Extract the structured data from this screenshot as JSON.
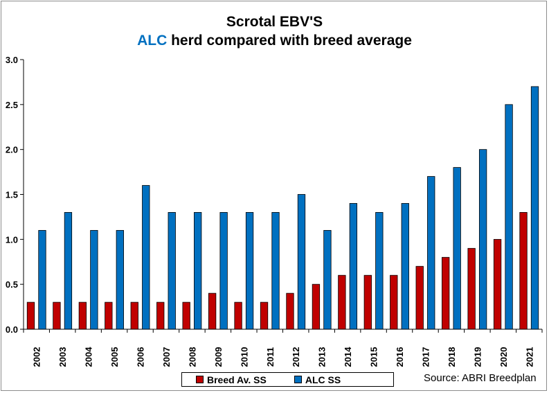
{
  "chart_data": {
    "type": "bar",
    "title_line1": "Scrotal EBV'S",
    "title_line2_accent": "ALC",
    "title_line2_rest": " herd compared with breed average",
    "categories": [
      "2002",
      "2003",
      "2004",
      "2005",
      "2006",
      "2007",
      "2008",
      "2009",
      "2010",
      "2011",
      "2012",
      "2013",
      "2014",
      "2015",
      "2016",
      "2017",
      "2018",
      "2019",
      "2020",
      "2021"
    ],
    "series": [
      {
        "name": "Breed Av. SS",
        "color": "#c00000",
        "values": [
          0.3,
          0.3,
          0.3,
          0.3,
          0.3,
          0.3,
          0.3,
          0.4,
          0.3,
          0.3,
          0.4,
          0.5,
          0.6,
          0.6,
          0.6,
          0.7,
          0.8,
          0.9,
          1.0,
          1.3
        ]
      },
      {
        "name": "ALC SS",
        "color": "#0070c0",
        "values": [
          1.1,
          1.3,
          1.1,
          1.1,
          1.6,
          1.3,
          1.3,
          1.3,
          1.3,
          1.3,
          1.5,
          1.1,
          1.4,
          1.3,
          1.4,
          1.7,
          1.8,
          2.0,
          2.5,
          2.7
        ]
      }
    ],
    "ylim": [
      0,
      3.0
    ],
    "yticks": [
      "0.0",
      "0.5",
      "1.0",
      "1.5",
      "2.0",
      "2.5",
      "3.0"
    ],
    "grid": false,
    "legend": "bottom"
  },
  "source": "Source: ABRI Breedplan"
}
